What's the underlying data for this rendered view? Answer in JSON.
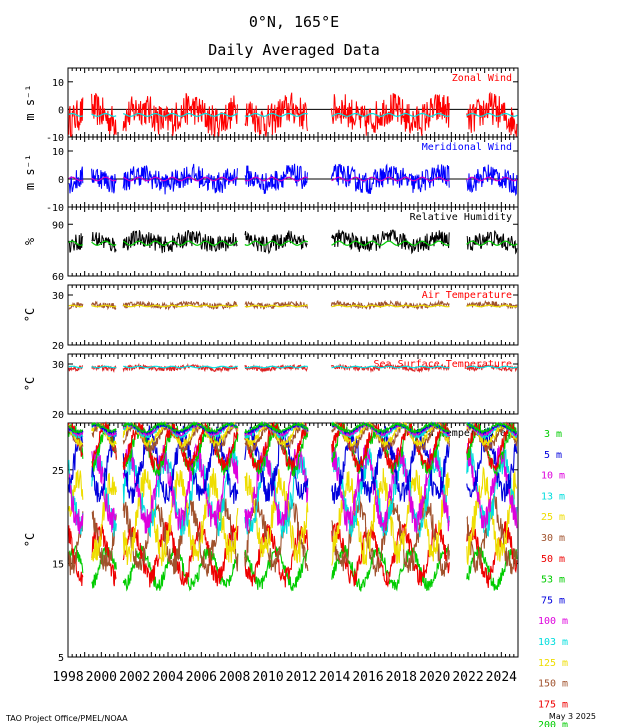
{
  "header": {
    "location": "0°N, 165°E",
    "subtitle": "Daily Averaged Data"
  },
  "footer": {
    "credit": "TAO Project Office/PMEL/NOAA",
    "date": "May  3 2025"
  },
  "chart_data": {
    "type": "line",
    "x_range": [
      1998,
      2025
    ],
    "x_tick_labels": [
      "1998",
      "2000",
      "2002",
      "2004",
      "2006",
      "2008",
      "2010",
      "2012",
      "2014",
      "2016",
      "2018",
      "2020",
      "2022",
      "2024"
    ],
    "colors": {
      "zonal": "#ff0000",
      "meridional": "#0000ff",
      "humidity": "#000000",
      "air": "#a0522d",
      "sst": "#dd2222",
      "climatology_cyan": "#00e0e0",
      "climatology_magenta": "#cc00cc",
      "climatology_green": "#00cc00",
      "climatology_yellow": "#e8d800"
    },
    "data_gaps": [
      [
        1998.9,
        1999.4
      ],
      [
        2000.9,
        2001.3
      ],
      [
        2008.2,
        2008.6
      ],
      [
        2012.4,
        2013.8
      ],
      [
        2020.9,
        2021.9
      ]
    ],
    "panels": [
      {
        "name": "Zonal Wind",
        "unit": "m s⁻¹",
        "ylim": [
          -10,
          15
        ],
        "yticks": [
          -10,
          0,
          10
        ],
        "ytick_labels": [
          "-10",
          "0",
          "10"
        ],
        "zero_line": 0,
        "series": [
          {
            "name": "daily",
            "baseline": -2,
            "amplitude": 6,
            "color": "zonal"
          },
          {
            "name": "climatology",
            "baseline": -2,
            "amplitude": 0.5,
            "color": "climatology_cyan"
          }
        ]
      },
      {
        "name": "Meridional Wind",
        "unit": "m s⁻¹",
        "ylim": [
          -10,
          15
        ],
        "yticks": [
          -10,
          0,
          10
        ],
        "ytick_labels": [
          "-10",
          "0",
          "10"
        ],
        "zero_line": 0,
        "series": [
          {
            "name": "daily",
            "baseline": 0,
            "amplitude": 4,
            "color": "meridional"
          },
          {
            "name": "climatology",
            "baseline": 0,
            "amplitude": 0.6,
            "color": "climatology_magenta"
          }
        ]
      },
      {
        "name": "Relative Humidity",
        "unit": "%",
        "ylim": [
          60,
          100
        ],
        "yticks": [
          60,
          90
        ],
        "ytick_labels": [
          "60",
          "90"
        ],
        "series": [
          {
            "name": "daily",
            "baseline": 80,
            "amplitude": 5,
            "color": "humidity"
          },
          {
            "name": "climatology",
            "baseline": 79,
            "amplitude": 1.2,
            "color": "climatology_green"
          }
        ]
      },
      {
        "name": "Air Temperature",
        "unit": "°C",
        "ylim": [
          20,
          32
        ],
        "yticks": [
          20,
          30
        ],
        "ytick_labels": [
          "20",
          "30"
        ],
        "series": [
          {
            "name": "daily",
            "baseline": 28,
            "amplitude": 0.6,
            "color": "air"
          },
          {
            "name": "climatology",
            "baseline": 27.8,
            "amplitude": 0.15,
            "color": "climatology_yellow"
          }
        ]
      },
      {
        "name": "Sea Surface Temperature",
        "unit": "°C",
        "ylim": [
          20,
          32
        ],
        "yticks": [
          20,
          30
        ],
        "ytick_labels": [
          "20",
          "30"
        ],
        "series": [
          {
            "name": "daily",
            "baseline": 29.2,
            "amplitude": 0.5,
            "color": "sst"
          },
          {
            "name": "climatology",
            "baseline": 29.4,
            "amplitude": 0.15,
            "color": "climatology_cyan"
          }
        ]
      },
      {
        "name": "Sea Temperatures",
        "unit": "°C",
        "ylim": [
          5,
          30
        ],
        "yticks": [
          5,
          15,
          25
        ],
        "ytick_labels": [
          "5",
          "15",
          "25"
        ],
        "depth_series": [
          {
            "name": "3 m",
            "color": "#00cc00",
            "baseline": 29.5,
            "amplitude": 0.4
          },
          {
            "name": "5 m",
            "color": "#0000dd",
            "baseline": 29.4,
            "amplitude": 0.4
          },
          {
            "name": "10 m",
            "color": "#dd00dd",
            "baseline": 29.3,
            "amplitude": 0.5
          },
          {
            "name": "13 m",
            "color": "#00dddd",
            "baseline": 29.2,
            "amplitude": 0.6
          },
          {
            "name": "25 m",
            "color": "#eedd00",
            "baseline": 28.8,
            "amplitude": 1.0
          },
          {
            "name": "30 m",
            "color": "#a0522d",
            "baseline": 28.5,
            "amplitude": 1.2
          },
          {
            "name": "50 m",
            "color": "#ee0000",
            "baseline": 27.5,
            "amplitude": 2.0
          },
          {
            "name": "53 m",
            "color": "#00cc00",
            "baseline": 27.2,
            "amplitude": 2.1
          },
          {
            "name": "75 m",
            "color": "#0000dd",
            "baseline": 25.5,
            "amplitude": 3.0
          },
          {
            "name": "100 m",
            "color": "#dd00dd",
            "baseline": 23.0,
            "amplitude": 3.5
          },
          {
            "name": "103 m",
            "color": "#00dddd",
            "baseline": 22.5,
            "amplitude": 3.5
          },
          {
            "name": "125 m",
            "color": "#eedd00",
            "baseline": 20.0,
            "amplitude": 3.8
          },
          {
            "name": "150 m",
            "color": "#a0522d",
            "baseline": 18.0,
            "amplitude": 3.2
          },
          {
            "name": "175 m",
            "color": "#ee0000",
            "baseline": 16.0,
            "amplitude": 2.6
          },
          {
            "name": "200 m",
            "color": "#00cc00",
            "baseline": 14.5,
            "amplitude": 1.8
          }
        ]
      }
    ]
  }
}
